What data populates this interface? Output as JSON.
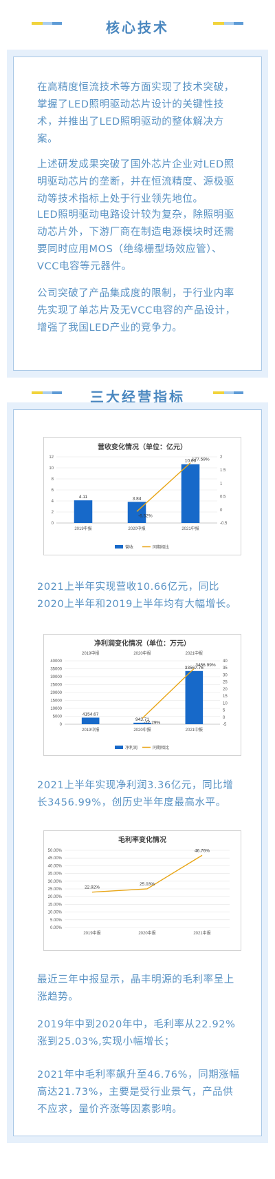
{
  "section1": {
    "title": "核心技术",
    "paragraphs": [
      "在高精度恒流技术等方面实现了技术突破，掌握了LED照明驱动芯片设计的关键性技术，并推出了LED照明驱动的整体解决方案。",
      "上述研发成果突破了国外芯片企业对LED照明驱动芯片的垄断，并在恒流精度、源极驱动等技术指标上处于行业领先地位。",
      " LED照明驱动电路设计较为复杂，除照明驱动芯片外，下游厂商在制造电源模块时还需要同时应用MOS（绝缘栅型场效应管）、VCC电容等元器件。",
      "公司突破了产品集成度的限制，于行业内率先实现了单芯片及无VCC电容的产品设计，增强了我国LED产业的竞争力。"
    ]
  },
  "section2": {
    "title": "三大经营指标",
    "paragraphs": [
      "2021上半年实现营收10.66亿元，同比2020上半年和2019上半年均有大幅增长。",
      "2021上半年实现净利润3.36亿元，同比增长3456.99%，创历史半年度最高水平。",
      "最近三年中报显示，晶丰明源的毛利率呈上涨趋势。",
      "2019年中到2020年中，毛利率从22.92%涨到25.03%,实现小幅增长；",
      "2021年中毛利率飙升至46.76%，同期涨幅高达21.73%，主要是受行业景气，产品供不应求，量价齐涨等因素影响。"
    ]
  },
  "colors": {
    "accent_blue": "#4a87bf",
    "bar_blue": "#1769c9",
    "line_orange": "#e8a515",
    "deco_yellow": "#f1d33b",
    "deco_light": "#a9cdef",
    "deco_blue": "#5e9bd6"
  },
  "chart_data": [
    {
      "type": "bar",
      "title": "营收变化情况（单位：亿元）",
      "categories": [
        "2019中报",
        "2020中报",
        "2021中报"
      ],
      "series": [
        {
          "name": "营收",
          "kind": "bar",
          "axis": "left",
          "values": [
            4.11,
            3.84,
            10.66
          ],
          "labels": [
            "4.11",
            "3.84",
            "10.66"
          ]
        },
        {
          "name": "同期相比",
          "kind": "line",
          "axis": "right",
          "values": [
            null,
            -0.0652,
            1.7759
          ],
          "labels": [
            "",
            "-6.52%",
            "177.59%"
          ]
        }
      ],
      "ylim": [
        0,
        12
      ],
      "yticks": [
        "0",
        "2",
        "4",
        "6",
        "8",
        "10",
        "12"
      ],
      "y2lim": [
        -0.5,
        2
      ],
      "y2ticks": [
        "-0.5",
        "0",
        "0.5",
        "1",
        "1.5",
        "2"
      ],
      "legend": "bottom"
    },
    {
      "type": "bar",
      "title": "净利润变化情况（单位：万元）",
      "categories": [
        "2019中报",
        "2020中报",
        "2021中报"
      ],
      "series": [
        {
          "name": "净利润",
          "kind": "bar",
          "axis": "left",
          "values": [
            4154.67,
            943.71,
            33567.76
          ],
          "labels": [
            "4154.67",
            "943.71",
            "33567.76"
          ]
        },
        {
          "name": "同期相比",
          "kind": "line",
          "axis": "right",
          "values": [
            null,
            -0.7729,
            34.5699
          ],
          "labels": [
            "",
            "-77.29%",
            "3456.99%"
          ]
        }
      ],
      "ylim": [
        0,
        40000
      ],
      "yticks": [
        "0",
        "5000",
        "10000",
        "15000",
        "20000",
        "25000",
        "30000",
        "35000",
        "40000"
      ],
      "y2lim": [
        -5,
        40
      ],
      "y2ticks": [
        "-5",
        "0",
        "5",
        "10",
        "15",
        "20",
        "25",
        "30",
        "35",
        "40"
      ],
      "legend": "bottom"
    },
    {
      "type": "line",
      "title": "毛利率变化情况",
      "categories": [
        "2019中报",
        "2020中报",
        "2021中报"
      ],
      "series": [
        {
          "name": "毛利率",
          "values": [
            0.2292,
            0.2503,
            0.4676
          ],
          "labels": [
            "22.92%",
            "25.03%",
            "46.76%"
          ]
        }
      ],
      "ylim": [
        0,
        0.5
      ],
      "yticks": [
        "0.00%",
        "5.00%",
        "10.00%",
        "15.00%",
        "20.00%",
        "25.00%",
        "30.00%",
        "35.00%",
        "40.00%",
        "45.00%",
        "50.00%"
      ]
    }
  ]
}
